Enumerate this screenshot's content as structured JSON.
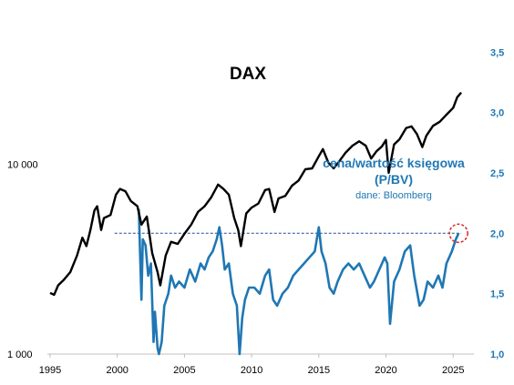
{
  "chart_data": {
    "type": "line",
    "title": "DAX",
    "annotation": {
      "line1": "cena/wartość księgowa",
      "line2": "(P/BV)",
      "source": "dane: Bloomberg"
    },
    "x_axis": {
      "range": [
        1995,
        2026
      ],
      "ticks": [
        "1995",
        "2000",
        "2005",
        "2010",
        "2015",
        "2020",
        "2025"
      ]
    },
    "y_left": {
      "scale": "log",
      "range": [
        1000,
        45000
      ],
      "ticks": [
        {
          "value": 1000,
          "label": "1 000"
        },
        {
          "value": 10000,
          "label": "10 000"
        }
      ]
    },
    "y_right": {
      "scale": "linear",
      "range": [
        1.0,
        3.6
      ],
      "ticks": [
        {
          "value": 1.0,
          "label": "1,0"
        },
        {
          "value": 1.5,
          "label": "1,5"
        },
        {
          "value": 2.0,
          "label": "2,0"
        },
        {
          "value": 2.5,
          "label": "2,5"
        },
        {
          "value": 3.0,
          "label": "3,0"
        },
        {
          "value": 3.5,
          "label": "3,5"
        }
      ]
    },
    "reference_line": {
      "value": 2.0,
      "x_start": 1999.8,
      "x_end": 2025.6,
      "color": "#1f4e9c"
    },
    "highlight_point": {
      "x": 2025.4,
      "y": 2.0
    },
    "colors": {
      "dax": "#000000",
      "pbv": "#1f77b4",
      "highlight": "#d62728"
    },
    "series": [
      {
        "key": "dax",
        "axis": "left",
        "x": [
          1995.0,
          1995.3,
          1995.6,
          1996.0,
          1996.5,
          1997.0,
          1997.4,
          1997.7,
          1998.0,
          1998.3,
          1998.5,
          1998.8,
          1999.0,
          1999.5,
          1999.9,
          2000.2,
          2000.6,
          2001.0,
          2001.5,
          2001.8,
          2002.2,
          2002.6,
          2003.0,
          2003.2,
          2003.6,
          2004.0,
          2004.5,
          2005.0,
          2005.5,
          2006.0,
          2006.5,
          2007.0,
          2007.5,
          2007.9,
          2008.3,
          2008.7,
          2009.0,
          2009.2,
          2009.6,
          2010.0,
          2010.5,
          2011.0,
          2011.3,
          2011.7,
          2012.0,
          2012.5,
          2013.0,
          2013.5,
          2014.0,
          2014.5,
          2015.0,
          2015.3,
          2015.7,
          2016.1,
          2016.5,
          2017.0,
          2017.5,
          2018.0,
          2018.5,
          2018.9,
          2019.3,
          2019.7,
          2020.0,
          2020.2,
          2020.6,
          2021.0,
          2021.5,
          2021.9,
          2022.3,
          2022.7,
          2023.0,
          2023.5,
          2024.0,
          2024.5,
          2025.0,
          2025.3,
          2025.6
        ],
        "values": [
          2100,
          2050,
          2300,
          2450,
          2700,
          3300,
          4100,
          3700,
          4500,
          5700,
          6000,
          4500,
          5200,
          5400,
          6900,
          7400,
          7200,
          6400,
          6000,
          4800,
          5300,
          3400,
          2700,
          2300,
          3300,
          3900,
          3800,
          4300,
          4800,
          5600,
          6000,
          6700,
          7800,
          7400,
          6900,
          5200,
          4500,
          3700,
          5500,
          5900,
          6200,
          7300,
          7400,
          5600,
          6600,
          6800,
          7700,
          8200,
          9400,
          9500,
          11000,
          12000,
          10200,
          9500,
          10300,
          11500,
          12500,
          13200,
          12500,
          10700,
          11700,
          12400,
          13400,
          9000,
          12700,
          13500,
          15500,
          15800,
          14400,
          12300,
          14100,
          15900,
          16700,
          18200,
          19800,
          22500,
          23800
        ]
      },
      {
        "key": "pbv",
        "axis": "right",
        "x": [
          2001.6,
          2001.8,
          2001.9,
          2002.1,
          2002.3,
          2002.5,
          2002.7,
          2002.8,
          2003.0,
          2003.1,
          2003.3,
          2003.5,
          2003.8,
          2004.0,
          2004.3,
          2004.6,
          2005.0,
          2005.4,
          2005.8,
          2006.2,
          2006.5,
          2006.8,
          2007.1,
          2007.4,
          2007.6,
          2007.8,
          2008.0,
          2008.3,
          2008.6,
          2008.9,
          2009.1,
          2009.3,
          2009.5,
          2009.8,
          2010.2,
          2010.6,
          2011.0,
          2011.3,
          2011.6,
          2011.9,
          2012.3,
          2012.7,
          2013.1,
          2013.5,
          2013.9,
          2014.3,
          2014.7,
          2015.0,
          2015.2,
          2015.5,
          2015.8,
          2016.1,
          2016.4,
          2016.8,
          2017.2,
          2017.6,
          2018.0,
          2018.4,
          2018.8,
          2019.1,
          2019.5,
          2019.9,
          2020.1,
          2020.3,
          2020.6,
          2021.0,
          2021.4,
          2021.8,
          2022.1,
          2022.5,
          2022.8,
          2023.1,
          2023.5,
          2023.9,
          2024.2,
          2024.5,
          2024.9,
          2025.2,
          2025.4
        ],
        "values": [
          2.2,
          1.45,
          1.95,
          1.9,
          1.65,
          1.75,
          1.1,
          1.35,
          1.05,
          1.0,
          1.1,
          1.4,
          1.5,
          1.65,
          1.55,
          1.6,
          1.55,
          1.7,
          1.6,
          1.75,
          1.7,
          1.8,
          1.85,
          1.95,
          2.05,
          1.9,
          1.7,
          1.75,
          1.5,
          1.4,
          1.0,
          1.3,
          1.45,
          1.55,
          1.55,
          1.5,
          1.65,
          1.7,
          1.45,
          1.4,
          1.5,
          1.55,
          1.65,
          1.7,
          1.75,
          1.8,
          1.85,
          2.05,
          1.85,
          1.75,
          1.55,
          1.5,
          1.6,
          1.7,
          1.75,
          1.7,
          1.75,
          1.65,
          1.55,
          1.6,
          1.7,
          1.8,
          1.75,
          1.25,
          1.6,
          1.7,
          1.85,
          1.9,
          1.65,
          1.4,
          1.45,
          1.6,
          1.55,
          1.65,
          1.55,
          1.75,
          1.85,
          1.95,
          2.0
        ]
      }
    ]
  }
}
